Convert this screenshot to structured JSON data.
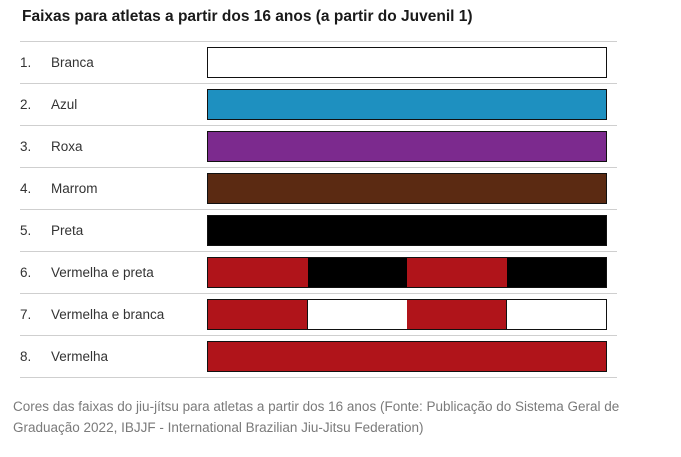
{
  "title": "Faixas para atletas a partir dos 16 anos (a partir do Juvenil 1)",
  "rows": [
    {
      "num": "1.",
      "name": "Branca",
      "segments": [
        "#ffffff"
      ]
    },
    {
      "num": "2.",
      "name": "Azul",
      "segments": [
        "#1e90c0"
      ]
    },
    {
      "num": "3.",
      "name": "Roxa",
      "segments": [
        "#7c2a8e"
      ]
    },
    {
      "num": "4.",
      "name": "Marrom",
      "segments": [
        "#5b2a12"
      ]
    },
    {
      "num": "5.",
      "name": "Preta",
      "segments": [
        "#000000"
      ]
    },
    {
      "num": "6.",
      "name": "Vermelha e preta",
      "segments": [
        "#b0141a",
        "#000000",
        "#b0141a",
        "#000000"
      ]
    },
    {
      "num": "7.",
      "name": "Vermelha e branca",
      "segments": [
        "#b0141a",
        "#ffffff",
        "#b0141a",
        "#ffffff"
      ]
    },
    {
      "num": "8.",
      "name": "Vermelha",
      "segments": [
        "#b0141a"
      ]
    }
  ],
  "caption": "Cores das faixas do jiu-jítsu para atletas a partir dos 16 anos (Fonte: Publicação do Sistema Geral de Graduação 2022, IBJJF - International Brazilian Jiu-Jitsu Federation)"
}
